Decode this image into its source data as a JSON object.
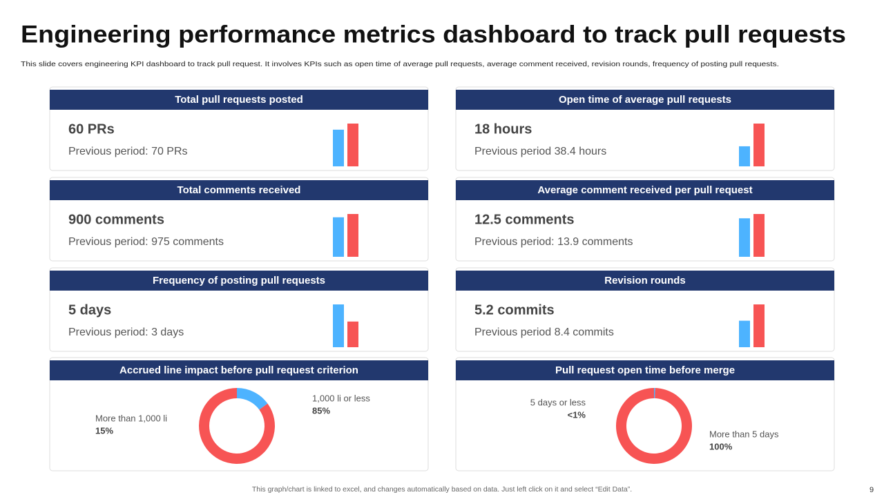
{
  "header": {
    "title": "Engineering performance metrics dashboard to track pull requests",
    "subtitle": "This slide covers engineering KPI dashboard to track pull request. It involves KPIs such as open time of average pull requests, average comment received, revision rounds, frequency of posting pull requests."
  },
  "kpis": [
    {
      "title": "Total pull requests  posted",
      "value_text": "60 PRs",
      "previous_text": "Previous period: 70 PRs",
      "current": 60,
      "previous": 70
    },
    {
      "title": "Open time of average pull requests",
      "value_text": "18 hours",
      "previous_text": "Previous period 38.4 hours",
      "current": 18,
      "previous": 38.4
    },
    {
      "title": "Total comments received",
      "value_text": "900 comments",
      "previous_text": "Previous period: 975 comments",
      "current": 900,
      "previous": 975
    },
    {
      "title": "Average comment received per pull request",
      "value_text": "12.5 comments",
      "previous_text": "Previous period: 13.9 comments",
      "current": 12.5,
      "previous": 13.9
    },
    {
      "title": "Frequency of posting pull requests",
      "value_text": "5 days",
      "previous_text": "Previous period: 3 days",
      "current": 5,
      "previous": 3
    },
    {
      "title": "Revision rounds",
      "value_text": "5.2 commits",
      "previous_text": "Previous period 8.4 commits",
      "current": 5.2,
      "previous": 8.4
    }
  ],
  "bar_colors": {
    "current": "#4db3ff",
    "previous": "#f75454"
  },
  "donuts": [
    {
      "title": "Accrued line impact before pull request criterion",
      "slices": [
        {
          "name": "More than 1,000 li",
          "value": 15,
          "label": "15%",
          "color": "#4db3ff"
        },
        {
          "name": "1,000 li or less",
          "value": 85,
          "label": "85%",
          "color": "#f75454"
        }
      ]
    },
    {
      "title": "Pull request open time before merge",
      "slices": [
        {
          "name": "5 days or less",
          "value": 0.5,
          "label": "<1%",
          "color": "#4db3ff"
        },
        {
          "name": "More than 5 days",
          "value": 100,
          "label": "100%",
          "color": "#f75454"
        }
      ]
    }
  ],
  "footer": {
    "note": "This graph/chart is linked to excel,  and changes automatically based on data. Just left click on it and select “Edit Data”.",
    "page": "9"
  }
}
